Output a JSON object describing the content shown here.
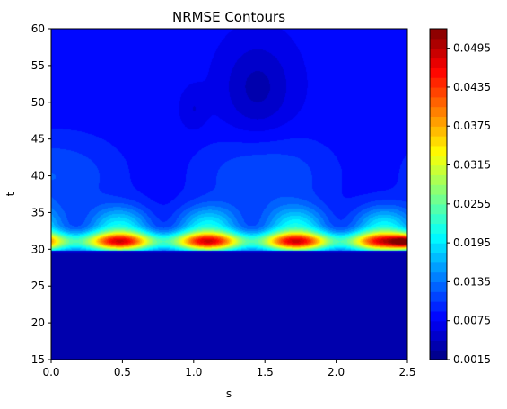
{
  "chart_data": {
    "type": "heatmap",
    "title": "NRMSE Contours",
    "xlabel": "s",
    "ylabel": "t",
    "xlim": [
      0.0,
      2.5
    ],
    "ylim": [
      15,
      60
    ],
    "x_ticks": [
      "0.0",
      "0.5",
      "1.0",
      "1.5",
      "2.0",
      "2.5"
    ],
    "y_ticks": [
      "15",
      "20",
      "25",
      "30",
      "35",
      "40",
      "45",
      "50",
      "55",
      "60"
    ],
    "colorbar": {
      "colormap": "jet",
      "range": [
        0.0015,
        0.0525
      ],
      "ticks": [
        "0.0015",
        "0.0075",
        "0.0135",
        "0.0195",
        "0.0255",
        "0.0315",
        "0.0375",
        "0.0435",
        "0.0495"
      ]
    },
    "grid": false,
    "features": {
      "band_center_t": 31,
      "band_peak_value": 0.033,
      "max_value_location": {
        "s": 2.5,
        "t": 31,
        "value": 0.052
      },
      "lower_region_value": 0.003,
      "upper_region_value": 0.008
    }
  }
}
